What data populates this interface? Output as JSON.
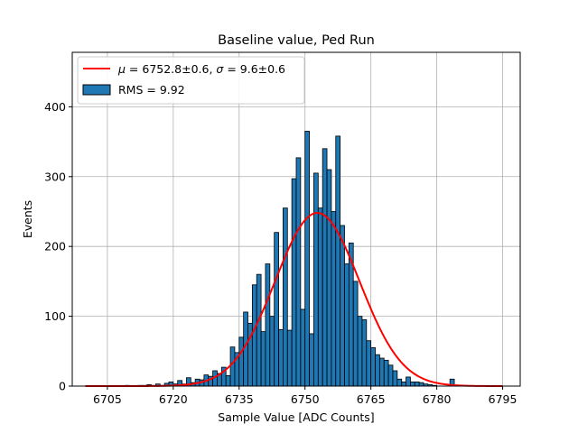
{
  "chart_data": {
    "type": "bar",
    "title": "Baseline value, Ped Run",
    "xlabel": "Sample Value [ADC Counts]",
    "ylabel": "Events",
    "xlim": [
      6697,
      6799
    ],
    "ylim": [
      0,
      478
    ],
    "xticks": [
      6705,
      6720,
      6735,
      6750,
      6765,
      6780,
      6795
    ],
    "yticks": [
      0,
      100,
      200,
      300,
      400
    ],
    "grid": true,
    "legend_position": "top-left",
    "bin_width": 1,
    "bins": {
      "x_start": [
        6709,
        6712,
        6713,
        6714,
        6715,
        6716,
        6717,
        6718,
        6719,
        6720,
        6721,
        6722,
        6723,
        6724,
        6725,
        6726,
        6727,
        6728,
        6729,
        6730,
        6731,
        6732,
        6733,
        6734,
        6735,
        6736,
        6737,
        6738,
        6739,
        6740,
        6741,
        6742,
        6743,
        6744,
        6745,
        6746,
        6747,
        6748,
        6749,
        6750,
        6751,
        6752,
        6753,
        6754,
        6755,
        6756,
        6757,
        6758,
        6759,
        6760,
        6761,
        6762,
        6763,
        6764,
        6765,
        6766,
        6767,
        6768,
        6769,
        6770,
        6771,
        6772,
        6773,
        6774,
        6775,
        6776,
        6777,
        6778,
        6779,
        6780,
        6783
      ],
      "counts": [
        1,
        1,
        1,
        2,
        1,
        3,
        1,
        4,
        6,
        3,
        8,
        3,
        12,
        5,
        10,
        9,
        16,
        14,
        22,
        18,
        27,
        15,
        56,
        48,
        70,
        106,
        90,
        145,
        160,
        78,
        175,
        100,
        220,
        81,
        255,
        80,
        297,
        327,
        110,
        365,
        75,
        305,
        255,
        340,
        310,
        250,
        358,
        230,
        175,
        205,
        150,
        100,
        95,
        65,
        55,
        45,
        40,
        37,
        30,
        22,
        10,
        6,
        13,
        6,
        6,
        5,
        3,
        2,
        1,
        0,
        10
      ]
    },
    "fit_curve": {
      "type": "gaussian",
      "amplitude": 248,
      "mean": 6752.8,
      "sigma": 9.6,
      "x_range": [
        6700,
        6795
      ],
      "color": "#ff0000"
    },
    "series": [
      {
        "name": "fit",
        "legend_label": "$\\mu = 6752.8\\pm0.6, \\sigma = 9.6\\pm0.6$",
        "display_mu": "μ",
        "display_rest_1": " = 6752.8±0.6, ",
        "display_sigma": "σ",
        "display_rest_2": " = 9.6±0.6",
        "color": "#ff0000"
      },
      {
        "name": "histogram",
        "legend_label": "RMS = 9.92",
        "color": "#1f77b4"
      }
    ]
  }
}
